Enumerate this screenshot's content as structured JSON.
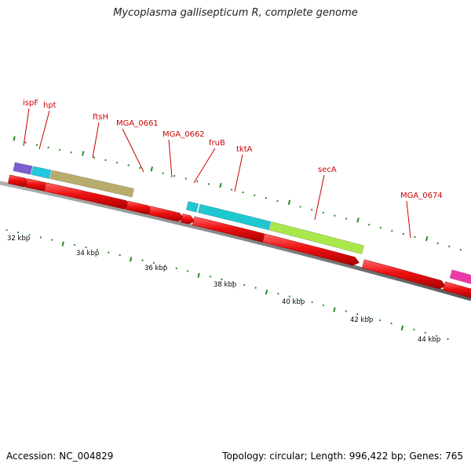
{
  "title": "Mycoplasma gallisepticum R, complete genome",
  "footer": {
    "accession": "Accession: NC_004829",
    "summary": "Topology: circular; Length: 996,422 bp; Genes: 765"
  },
  "colors": {
    "backbone": "#8c8c8c",
    "cds_red": "#ee1111",
    "tick_green": "#2a8a2a",
    "label_red": "#cc0000",
    "purple": "#7b5fd0",
    "cyan": "#22c8e0",
    "khaki": "#b8ac6c",
    "teal": "#1ec8d0",
    "lime": "#a8e84a",
    "magenta": "#ee3aa8"
  },
  "gene_labels": [
    {
      "text": "ispF"
    },
    {
      "text": "hpt"
    },
    {
      "text": "ftsH"
    },
    {
      "text": "MGA_0661"
    },
    {
      "text": "MGA_0662"
    },
    {
      "text": "fruB"
    },
    {
      "text": "tktA"
    },
    {
      "text": "secA"
    },
    {
      "text": "MGA_0674"
    }
  ],
  "kbp_labels": [
    "32 kbp",
    "34 kbp",
    "36 kbp",
    "38 kbp",
    "40 kbp",
    "42 kbp",
    "44 kbp"
  ]
}
